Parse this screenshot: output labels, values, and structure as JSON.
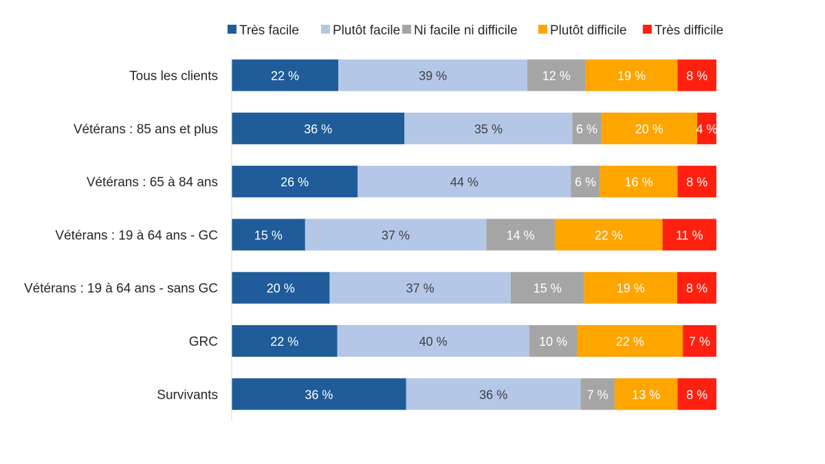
{
  "chart_data": {
    "type": "bar",
    "orientation": "horizontal",
    "stacked": true,
    "normalized": true,
    "title": "",
    "xlabel": "",
    "ylabel": "",
    "xlim": [
      0,
      100
    ],
    "grid": false,
    "legend_position": "top",
    "categories": [
      "Tous les clients",
      "Vétérans : 85 ans et plus",
      "Vétérans : 65 à 84 ans",
      "Vétérans : 19 à 64 ans - GC",
      "Vétérans : 19 à 64 ans - sans GC",
      "GRC",
      "Survivants"
    ],
    "series": [
      {
        "name": "Très facile",
        "color": "#1F5C99",
        "label_color": "#FFFFFF",
        "values": [
          22,
          36,
          26,
          15,
          20,
          22,
          36
        ],
        "labels": [
          "22 %",
          "36 %",
          "26 %",
          "15 %",
          "20 %",
          "22 %",
          "36 %"
        ]
      },
      {
        "name": "Plutôt facile",
        "color": "#B4C7E7",
        "label_color": "#404040",
        "values": [
          39,
          35,
          44,
          37,
          37,
          40,
          36
        ],
        "labels": [
          "39 %",
          "35 %",
          "44 %",
          "37 %",
          "37 %",
          "40 %",
          "36 %"
        ]
      },
      {
        "name": "Ni facile ni difficile",
        "color": "#A5A5A5",
        "label_color": "#FFFFFF",
        "values": [
          12,
          6,
          6,
          14,
          15,
          10,
          7
        ],
        "labels": [
          "12 %",
          "6 %",
          "6 %",
          "14 %",
          "15 %",
          "10 %",
          "7 %"
        ]
      },
      {
        "name": "Plutôt difficile",
        "color": "#FFA500",
        "label_color": "#FFFFFF",
        "values": [
          19,
          20,
          16,
          22,
          19,
          22,
          13
        ],
        "labels": [
          "19 %",
          "20 %",
          "16 %",
          "22 %",
          "19 %",
          "22 %",
          "13 %"
        ]
      },
      {
        "name": "Très difficile",
        "color": "#FF2010",
        "label_color": "#FFFFFF",
        "values": [
          8,
          4,
          8,
          11,
          8,
          7,
          8
        ],
        "labels": [
          "8 %",
          "4 %",
          "8 %",
          "11 %",
          "8 %",
          "7 %",
          "8 %"
        ]
      }
    ]
  }
}
